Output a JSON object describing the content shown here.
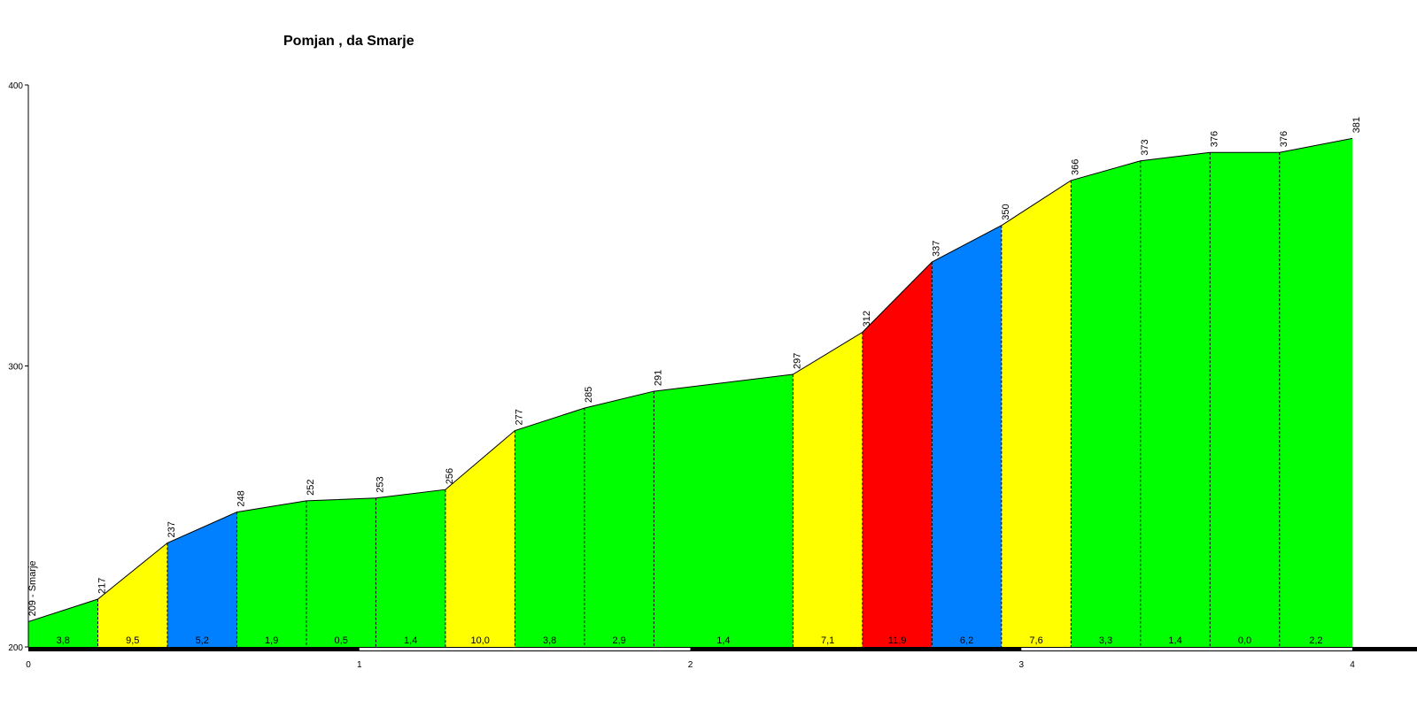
{
  "chart_data": {
    "type": "area",
    "title": "Pomjan , da Smarje",
    "xlabel": "",
    "ylabel": "",
    "xlim": [
      0,
      4
    ],
    "ylim": [
      200,
      400
    ],
    "x_ticks": [
      "0",
      "1",
      "2",
      "3",
      "4"
    ],
    "y_ticks": [
      "200",
      "300",
      "400"
    ],
    "points": [
      {
        "x": 0.0,
        "y": 209,
        "label": "209 - Smarje"
      },
      {
        "x": 0.21,
        "y": 217,
        "label": "217"
      },
      {
        "x": 0.42,
        "y": 237,
        "label": "237"
      },
      {
        "x": 0.63,
        "y": 248,
        "label": "248"
      },
      {
        "x": 0.84,
        "y": 252,
        "label": "252"
      },
      {
        "x": 1.05,
        "y": 253,
        "label": "253"
      },
      {
        "x": 1.26,
        "y": 256,
        "label": "256"
      },
      {
        "x": 1.47,
        "y": 277,
        "label": "277"
      },
      {
        "x": 1.68,
        "y": 285,
        "label": "285"
      },
      {
        "x": 1.89,
        "y": 291,
        "label": "291"
      },
      {
        "x": 2.31,
        "y": 297,
        "label": "297"
      },
      {
        "x": 2.52,
        "y": 312,
        "label": "312"
      },
      {
        "x": 2.73,
        "y": 337,
        "label": "337"
      },
      {
        "x": 2.94,
        "y": 350,
        "label": "350"
      },
      {
        "x": 3.15,
        "y": 366,
        "label": "366"
      },
      {
        "x": 3.36,
        "y": 373,
        "label": "373"
      },
      {
        "x": 3.57,
        "y": 376,
        "label": "376"
      },
      {
        "x": 3.78,
        "y": 376,
        "label": "376"
      },
      {
        "x": 4.0,
        "y": 381,
        "label": "381"
      }
    ],
    "segments": [
      {
        "grade": "3,8",
        "color": "#00ff00"
      },
      {
        "grade": "9,5",
        "color": "#ffff00"
      },
      {
        "grade": "5,2",
        "color": "#0080ff"
      },
      {
        "grade": "1,9",
        "color": "#00ff00"
      },
      {
        "grade": "0,5",
        "color": "#00ff00"
      },
      {
        "grade": "1,4",
        "color": "#00ff00"
      },
      {
        "grade": "10,0",
        "color": "#ffff00"
      },
      {
        "grade": "3,8",
        "color": "#00ff00"
      },
      {
        "grade": "2,9",
        "color": "#00ff00"
      },
      {
        "grade": "1,4",
        "color": "#00ff00"
      },
      {
        "grade": "7,1",
        "color": "#ffff00"
      },
      {
        "grade": "11,9",
        "color": "#ff0000"
      },
      {
        "grade": "6,2",
        "color": "#0080ff"
      },
      {
        "grade": "7,6",
        "color": "#ffff00"
      },
      {
        "grade": "3,3",
        "color": "#00ff00"
      },
      {
        "grade": "1,4",
        "color": "#00ff00"
      },
      {
        "grade": "0,0",
        "color": "#00ff00"
      },
      {
        "grade": "2,2",
        "color": "#00ff00"
      }
    ],
    "grid": false,
    "legend": "none"
  }
}
